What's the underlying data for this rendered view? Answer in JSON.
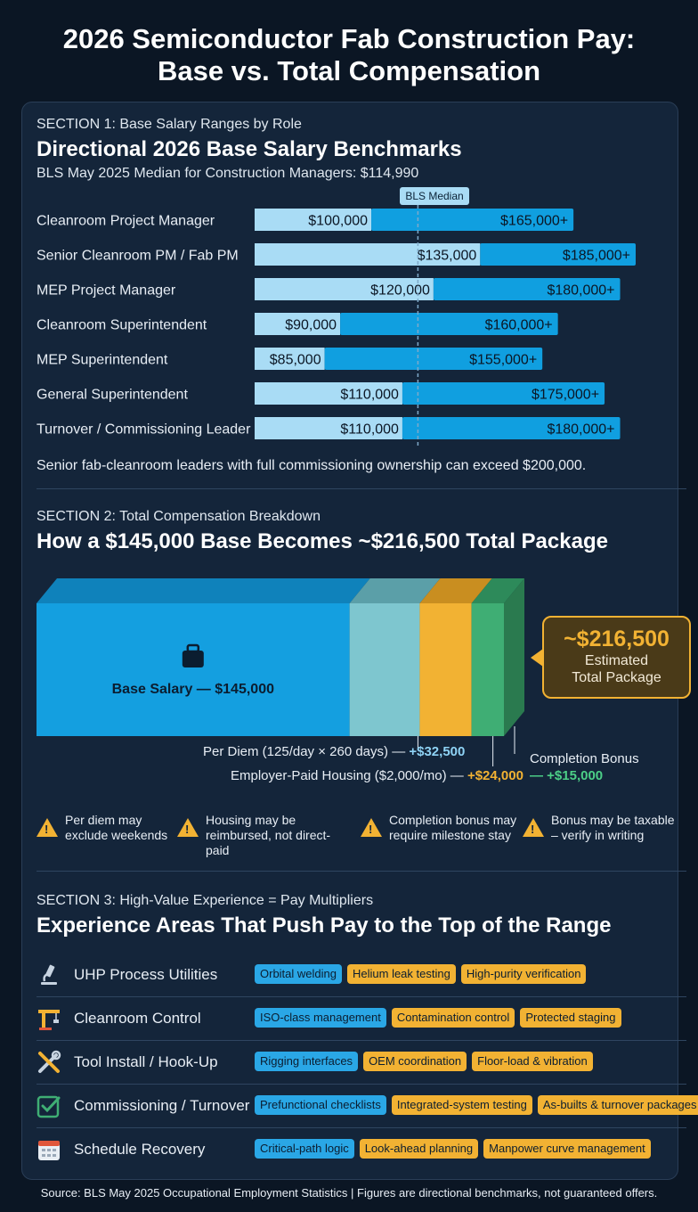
{
  "title_line1": "2026 Semiconductor Fab Construction Pay:",
  "title_line2": "Base vs. Total Compensation",
  "section1": {
    "label": "SECTION 1: Base Salary Ranges by Role",
    "heading": "Directional 2026 Base Salary Benchmarks",
    "subtitle": "BLS May 2025 Median for Construction Managers: $114,990",
    "median_tag": "BLS Median",
    "note": "Senior fab-cleanroom leaders with full commissioning ownership can exceed $200,000."
  },
  "chart_data": [
    {
      "type": "bar",
      "orientation": "horizontal",
      "categories": [
        "Cleanroom Project Manager",
        "Senior Cleanroom PM / Fab PM",
        "MEP Project Manager",
        "Cleanroom Superintendent",
        "MEP Superintendent",
        "General Superintendent",
        "Turnover / Commissioning Leader"
      ],
      "low_values": [
        100000,
        135000,
        120000,
        90000,
        85000,
        110000,
        110000
      ],
      "high_values": [
        165000,
        185000,
        180000,
        160000,
        155000,
        175000,
        180000
      ],
      "low_labels": [
        "$100,000",
        "$135,000",
        "$120,000",
        "$90,000",
        "$85,000",
        "$110,000",
        "$110,000"
      ],
      "high_labels": [
        "$165,000+",
        "$185,000+",
        "$180,000+",
        "$160,000+",
        "$155,000+",
        "$175,000+",
        "$180,000+"
      ],
      "reference_line": 114990,
      "colors": {
        "low": "#a9dcf5",
        "high": "#109fe0",
        "median_line": "#7fa9c9"
      }
    },
    {
      "type": "bar",
      "orientation": "stacked",
      "segments": [
        {
          "name": "Base Salary",
          "value": 145000,
          "color": "#149fe0",
          "top": "#0f82bb"
        },
        {
          "name": "Per Diem",
          "value": 32500,
          "color": "#7ec6cf",
          "top": "#5b9fa8"
        },
        {
          "name": "Employer-Paid Housing",
          "value": 24000,
          "color": "#f2b233",
          "top": "#c98e20"
        },
        {
          "name": "Completion Bonus",
          "value": 15000,
          "color": "#3fae74",
          "top": "#2d8a5a"
        }
      ],
      "total": 216500
    }
  ],
  "section2": {
    "label": "SECTION 2: Total Compensation Breakdown",
    "heading": "How a $145,000 Base Becomes ~$216,500 Total Package",
    "base_label": "Base Salary — $145,000",
    "callout_value": "~$216,500",
    "callout_line1": "Estimated",
    "callout_line2": "Total Package",
    "per_diem_text": "Per Diem (125/day × 260 days) — ",
    "per_diem_amount": "+$32,500",
    "housing_text": "Employer-Paid Housing ($2,000/mo) — ",
    "housing_amount": "+$24,000",
    "bonus_text": "Completion Bonus",
    "bonus_amount": "— +$15,000",
    "warnings": [
      {
        "line1": "Per diem may",
        "line2": "exclude weekends"
      },
      {
        "line1": "Housing may be",
        "line2": "reimbursed, not direct-paid"
      },
      {
        "line1": "Completion bonus may",
        "line2": "require milestone stay"
      },
      {
        "line1": "Bonus may be taxable",
        "line2": "– verify in writing"
      }
    ]
  },
  "section3": {
    "label": "SECTION 3: High-Value Experience = Pay Multipliers",
    "heading": "Experience Areas That Push Pay to the Top of the Range",
    "rows": [
      {
        "name": "UHP Process Utilities",
        "icon": "microscope-icon",
        "tags": [
          "Orbital welding",
          "Helium leak testing",
          "High-purity verification"
        ]
      },
      {
        "name": "Cleanroom Control",
        "icon": "crane-icon",
        "tags": [
          "ISO-class management",
          "Contamination control",
          "Protected staging"
        ]
      },
      {
        "name": "Tool Install / Hook-Up",
        "icon": "tools-icon",
        "tags": [
          "Rigging interfaces",
          "OEM coordination",
          "Floor-load & vibration"
        ]
      },
      {
        "name": "Commissioning / Turnover",
        "icon": "checkbox-icon",
        "tags": [
          "Prefunctional checklists",
          "Integrated-system testing",
          "As-builts & turnover packages"
        ]
      },
      {
        "name": "Schedule Recovery",
        "icon": "calendar-icon",
        "tags": [
          "Critical-path logic",
          "Look-ahead planning",
          "Manpower curve management"
        ]
      }
    ]
  },
  "source": "Source: BLS May 2025 Occupational Employment Statistics | Figures are directional benchmarks, not guaranteed offers."
}
